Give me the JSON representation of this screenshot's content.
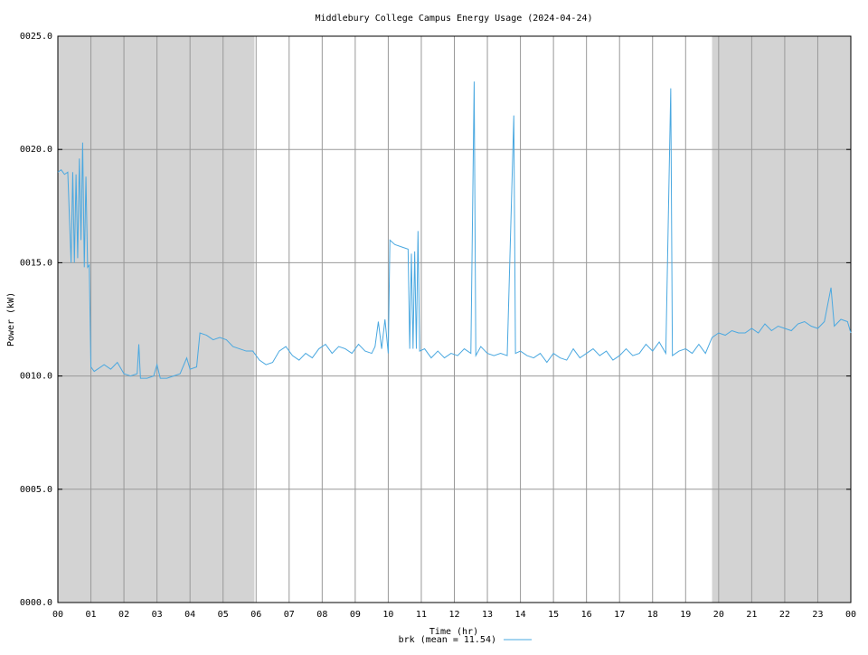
{
  "chart_data": {
    "type": "line",
    "title": "Middlebury College Campus Energy Usage (2024-04-24)",
    "x_label": "Time (hr)",
    "y_label": "Power (kW)",
    "xlim": [
      0,
      24
    ],
    "ylim": [
      0,
      25
    ],
    "xticks": [
      {
        "value": 0,
        "label": "00"
      },
      {
        "value": 1,
        "label": "01"
      },
      {
        "value": 2,
        "label": "02"
      },
      {
        "value": 3,
        "label": "03"
      },
      {
        "value": 4,
        "label": "04"
      },
      {
        "value": 5,
        "label": "05"
      },
      {
        "value": 6,
        "label": "06"
      },
      {
        "value": 7,
        "label": "07"
      },
      {
        "value": 8,
        "label": "08"
      },
      {
        "value": 9,
        "label": "09"
      },
      {
        "value": 10,
        "label": "10"
      },
      {
        "value": 11,
        "label": "11"
      },
      {
        "value": 12,
        "label": "12"
      },
      {
        "value": 13,
        "label": "13"
      },
      {
        "value": 14,
        "label": "14"
      },
      {
        "value": 15,
        "label": "15"
      },
      {
        "value": 16,
        "label": "16"
      },
      {
        "value": 17,
        "label": "17"
      },
      {
        "value": 18,
        "label": "18"
      },
      {
        "value": 19,
        "label": "19"
      },
      {
        "value": 20,
        "label": "20"
      },
      {
        "value": 21,
        "label": "21"
      },
      {
        "value": 22,
        "label": "22"
      },
      {
        "value": 23,
        "label": "23"
      },
      {
        "value": 24,
        "label": "00"
      }
    ],
    "yticks": [
      {
        "value": 0,
        "label": "0000.0"
      },
      {
        "value": 5,
        "label": "0005.0"
      },
      {
        "value": 10,
        "label": "0010.0"
      },
      {
        "value": 15,
        "label": "0015.0"
      },
      {
        "value": 20,
        "label": "0020.0"
      },
      {
        "value": 25,
        "label": "0025.0"
      }
    ],
    "grid": true,
    "legend": "bottom",
    "shaded": [
      [
        0,
        5.95
      ],
      [
        19.8,
        24
      ]
    ],
    "shade_color": "#d3d3d3",
    "x": [
      0.0,
      0.1,
      0.2,
      0.3,
      0.4,
      0.45,
      0.5,
      0.55,
      0.6,
      0.65,
      0.7,
      0.75,
      0.8,
      0.85,
      0.9,
      0.95,
      1.0,
      1.1,
      1.2,
      1.4,
      1.6,
      1.8,
      2.0,
      2.2,
      2.4,
      2.45,
      2.5,
      2.7,
      2.9,
      3.0,
      3.1,
      3.3,
      3.5,
      3.7,
      3.9,
      4.0,
      4.2,
      4.3,
      4.5,
      4.7,
      4.9,
      5.1,
      5.3,
      5.5,
      5.7,
      5.9,
      6.1,
      6.3,
      6.5,
      6.7,
      6.9,
      7.1,
      7.3,
      7.5,
      7.7,
      7.9,
      8.1,
      8.3,
      8.5,
      8.7,
      8.9,
      9.1,
      9.3,
      9.5,
      9.6,
      9.7,
      9.8,
      9.9,
      10.0,
      10.05,
      10.2,
      10.4,
      10.6,
      10.65,
      10.7,
      10.75,
      10.8,
      10.85,
      10.9,
      10.95,
      11.1,
      11.3,
      11.5,
      11.7,
      11.9,
      12.1,
      12.3,
      12.5,
      12.6,
      12.65,
      12.8,
      13.0,
      13.2,
      13.4,
      13.6,
      13.8,
      13.85,
      14.0,
      14.2,
      14.4,
      14.6,
      14.8,
      15.0,
      15.2,
      15.4,
      15.6,
      15.8,
      16.0,
      16.2,
      16.4,
      16.6,
      16.8,
      17.0,
      17.2,
      17.4,
      17.6,
      17.8,
      18.0,
      18.2,
      18.4,
      18.55,
      18.6,
      18.8,
      19.0,
      19.2,
      19.4,
      19.6,
      19.8,
      20.0,
      20.2,
      20.4,
      20.6,
      20.8,
      21.0,
      21.2,
      21.4,
      21.6,
      21.8,
      22.0,
      22.2,
      22.4,
      22.6,
      22.8,
      23.0,
      23.2,
      23.4,
      23.5,
      23.7,
      23.9,
      24.0
    ],
    "series": [
      {
        "name": "brk (mean = 11.54)",
        "color": "#4aa8e0",
        "values": [
          19.0,
          19.1,
          18.9,
          19.0,
          15.0,
          19.0,
          15.0,
          18.9,
          15.2,
          19.6,
          16.0,
          20.3,
          14.8,
          18.8,
          14.8,
          14.9,
          10.4,
          10.2,
          10.3,
          10.5,
          10.3,
          10.6,
          10.1,
          10.0,
          10.1,
          11.4,
          9.9,
          9.9,
          10.0,
          10.5,
          9.9,
          9.9,
          10.0,
          10.1,
          10.8,
          10.3,
          10.4,
          11.9,
          11.8,
          11.6,
          11.7,
          11.6,
          11.3,
          11.2,
          11.1,
          11.1,
          10.7,
          10.5,
          10.6,
          11.1,
          11.3,
          10.9,
          10.7,
          11.0,
          10.8,
          11.2,
          11.4,
          11.0,
          11.3,
          11.2,
          11.0,
          11.4,
          11.1,
          11.0,
          11.3,
          12.4,
          11.2,
          12.5,
          11.0,
          16.0,
          15.8,
          15.7,
          15.6,
          11.2,
          15.4,
          11.2,
          15.5,
          11.2,
          16.4,
          11.1,
          11.2,
          10.8,
          11.1,
          10.8,
          11.0,
          10.9,
          11.2,
          11.0,
          23.0,
          10.9,
          11.3,
          11.0,
          10.9,
          11.0,
          10.9,
          21.5,
          11.0,
          11.1,
          10.9,
          10.8,
          11.0,
          10.6,
          11.0,
          10.8,
          10.7,
          11.2,
          10.8,
          11.0,
          11.2,
          10.9,
          11.1,
          10.7,
          10.9,
          11.2,
          10.9,
          11.0,
          11.4,
          11.1,
          11.5,
          11.0,
          22.7,
          10.9,
          11.1,
          11.2,
          11.0,
          11.4,
          11.0,
          11.7,
          11.9,
          11.8,
          12.0,
          11.9,
          11.9,
          12.1,
          11.9,
          12.3,
          12.0,
          12.2,
          12.1,
          12.0,
          12.3,
          12.4,
          12.2,
          12.1,
          12.4,
          13.9,
          12.2,
          12.5,
          12.4,
          11.9
        ]
      }
    ]
  }
}
